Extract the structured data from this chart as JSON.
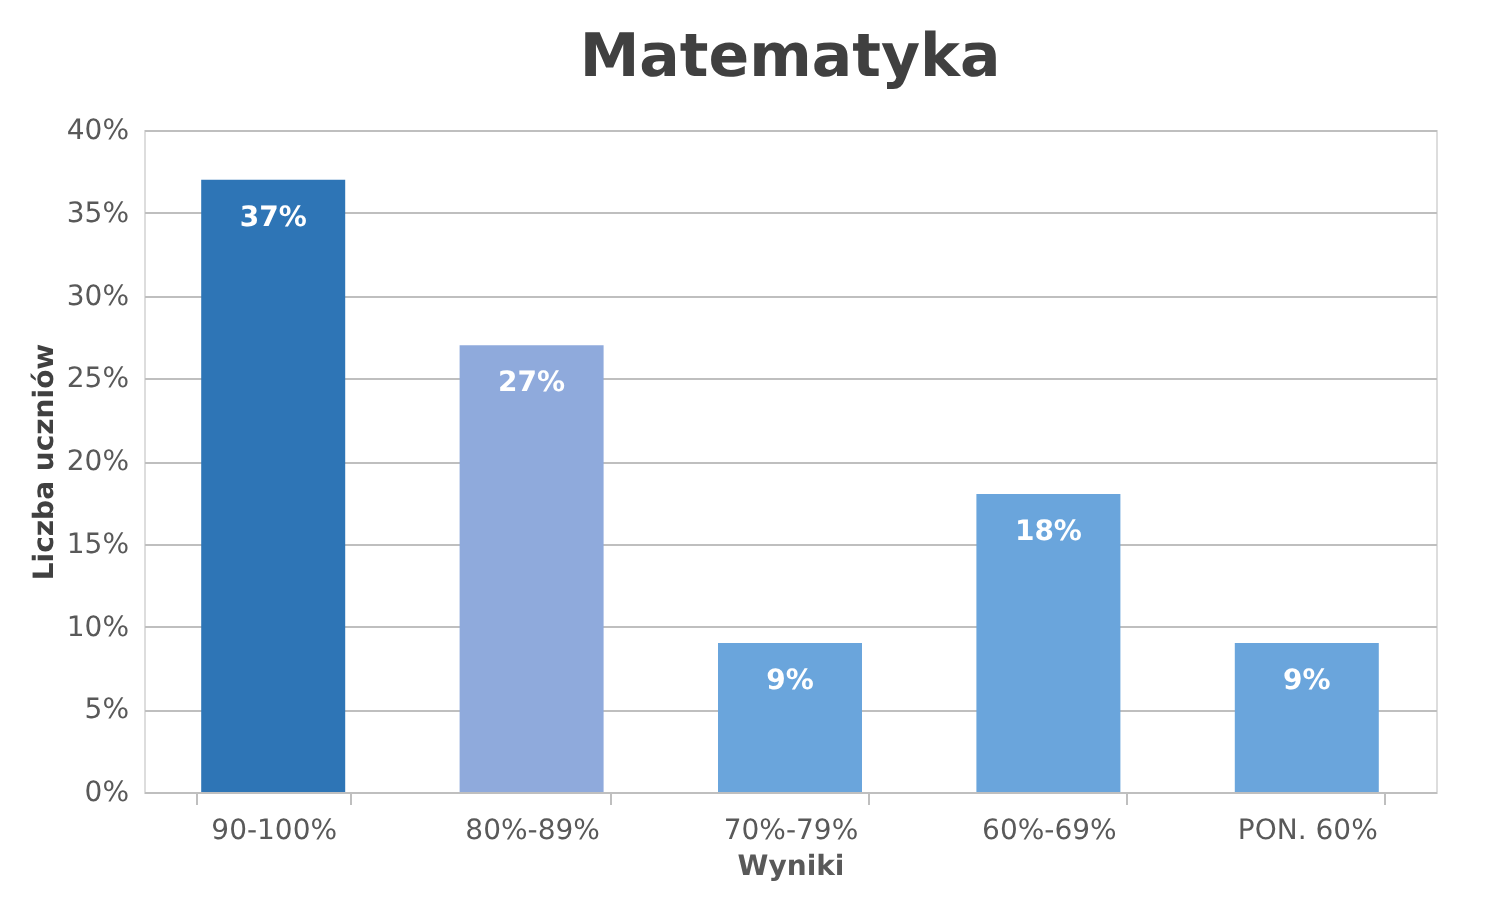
{
  "chart_data": {
    "type": "bar",
    "title": "Matematyka",
    "xlabel": "Wyniki",
    "ylabel": "Liczba uczniów",
    "categories": [
      "90-100%",
      "80%-89%",
      "70%-79%",
      "60%-69%",
      "PON. 60%"
    ],
    "values": [
      37,
      27,
      9,
      18,
      9
    ],
    "colors": [
      "#2e75b6",
      "#8faadc",
      "#6aa5dc",
      "#6aa5dc",
      "#6aa5dc"
    ],
    "value_labels": [
      "37%",
      "27%",
      "9%",
      "18%",
      "9%"
    ],
    "ylim": [
      0,
      40
    ],
    "yticks": [
      {
        "value": 0,
        "label": "0%"
      },
      {
        "value": 5,
        "label": "5%"
      },
      {
        "value": 10,
        "label": "10%"
      },
      {
        "value": 15,
        "label": "15%"
      },
      {
        "value": 20,
        "label": "20%"
      },
      {
        "value": 25,
        "label": "25%"
      },
      {
        "value": 30,
        "label": "30%"
      },
      {
        "value": 35,
        "label": "35%"
      },
      {
        "value": 40,
        "label": "40%"
      }
    ],
    "grid": "y"
  }
}
